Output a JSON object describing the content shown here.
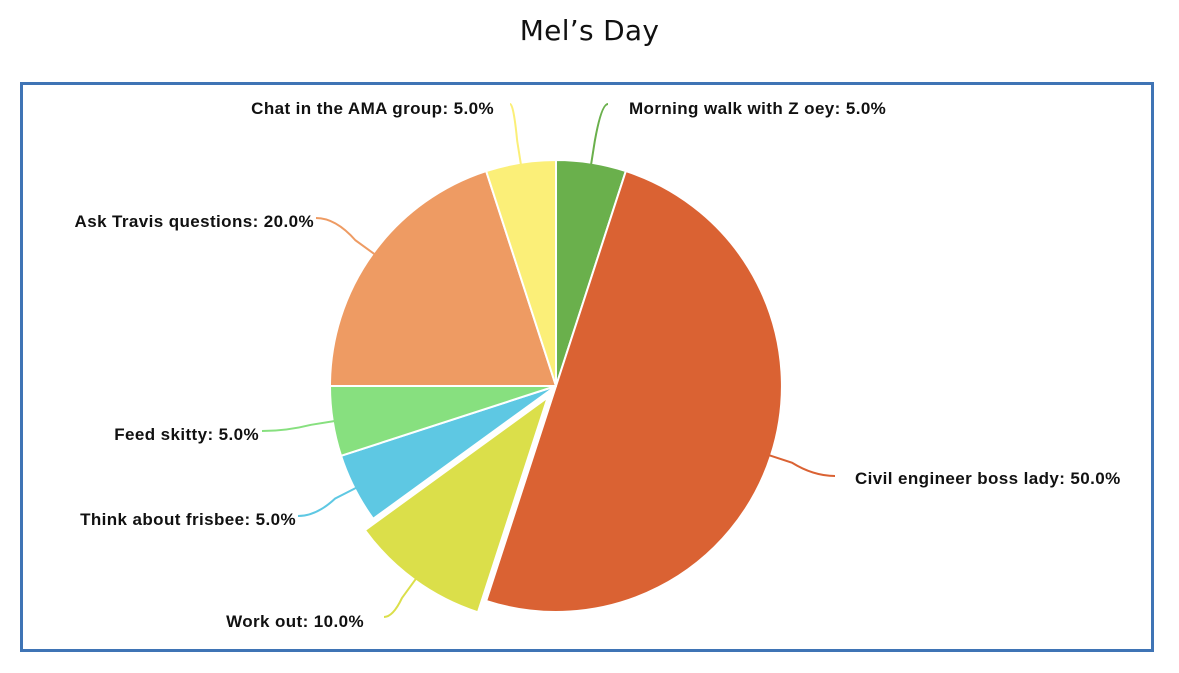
{
  "chart_data": {
    "type": "pie",
    "title": "Mel’s Day",
    "slices": [
      {
        "label": "Morning walk with Zoey",
        "value": 5.0,
        "color": "#6ab04c",
        "label_text": "Morning walk with Z oey: 5.0%",
        "placement": "top-right"
      },
      {
        "label": "Civil engineer boss lady",
        "value": 50.0,
        "color": "#da6233",
        "label_text": "Civil engineer boss lady: 50.0%",
        "placement": "right"
      },
      {
        "label": "Work out",
        "value": 10.0,
        "color": "#dbdf4a",
        "label_text": "Work out: 10.0%",
        "placement": "bottom-left",
        "exploded": true
      },
      {
        "label": "Think about frisbee",
        "value": 5.0,
        "color": "#5ec8e3",
        "label_text": "Think about frisbee: 5.0%",
        "placement": "left"
      },
      {
        "label": "Feed skitty",
        "value": 5.0,
        "color": "#87e07f",
        "label_text": "Feed skitty: 5.0%",
        "placement": "left"
      },
      {
        "label": "Ask Travis questions",
        "value": 20.0,
        "color": "#ee9b63",
        "label_text": "Ask Travis questions: 20.0%",
        "placement": "left"
      },
      {
        "label": "Chat in the AMA group",
        "value": 5.0,
        "color": "#fbef78",
        "label_text": "Chat in the AMA group: 5.0%",
        "placement": "top-left"
      }
    ],
    "frame_color": "#3f74b5"
  }
}
